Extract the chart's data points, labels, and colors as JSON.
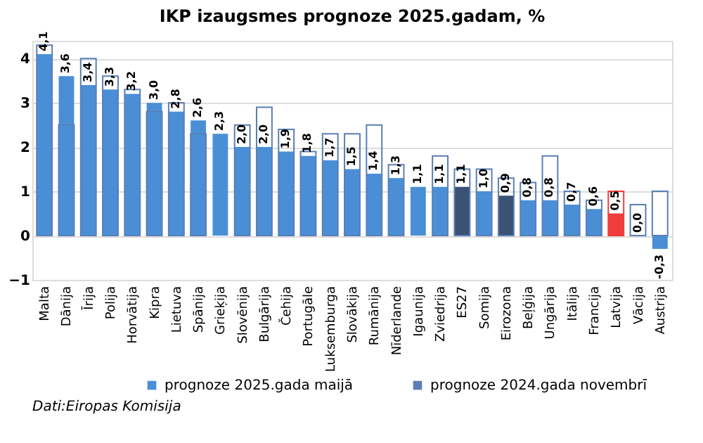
{
  "chart_data": {
    "type": "bar",
    "title": "IKP izaugsmes prognoze 2025.gadam, %",
    "categories": [
      "Malta",
      "Dānija",
      "Īrija",
      "Polija",
      "Horvātija",
      "Kipra",
      "Lietuva",
      "Spānija",
      "Grieķija",
      "Slovēnija",
      "Bulgārija",
      "Čehija",
      "Portugāle",
      "Luksemburga",
      "Slovākija",
      "Rumānija",
      "Nīderlande",
      "Igaunija",
      "Zviedrija",
      "ES27",
      "Somija",
      "Eirozona",
      "Beļģija",
      "Ungārija",
      "Itālija",
      "Francija",
      "Latvija",
      "Vācija",
      "Austrija"
    ],
    "series": [
      {
        "name": "prognoze 2025.gada maijā",
        "color": "#4a8fd6",
        "colors": [
          "#4a8fd6",
          "#4a8fd6",
          "#4a8fd6",
          "#4a8fd6",
          "#4a8fd6",
          "#4a8fd6",
          "#4a8fd6",
          "#4a8fd6",
          "#4a8fd6",
          "#4a8fd6",
          "#4a8fd6",
          "#4a8fd6",
          "#4a8fd6",
          "#4a8fd6",
          "#4a8fd6",
          "#4a8fd6",
          "#4a8fd6",
          "#4a8fd6",
          "#4a8fd6",
          "#3b5274",
          "#4a8fd6",
          "#3b5274",
          "#4a8fd6",
          "#4a8fd6",
          "#4a8fd6",
          "#4a8fd6",
          "#f03c3c",
          "#4a8fd6",
          "#4a8fd6"
        ],
        "values": [
          4.1,
          3.6,
          3.4,
          3.3,
          3.2,
          3.0,
          2.8,
          2.6,
          2.3,
          2.0,
          2.0,
          1.9,
          1.8,
          1.7,
          1.5,
          1.4,
          1.3,
          1.1,
          1.1,
          1.1,
          1.0,
          0.9,
          0.8,
          0.8,
          0.7,
          0.6,
          0.5,
          0.0,
          -0.3
        ],
        "value_labels": [
          "4,1",
          "3,6",
          "3,4",
          "3,3",
          "3,2",
          "3,0",
          "2,8",
          "2,6",
          "2,3",
          "2,0",
          "2,0",
          "1,9",
          "1,8",
          "1,7",
          "1,5",
          "1,4",
          "1,3",
          "1,1",
          "1,1",
          "1,1",
          "1,0",
          "0,9",
          "0,8",
          "0,8",
          "0,7",
          "0,6",
          "0,5",
          "0,0",
          "-0,3"
        ]
      },
      {
        "name": "prognoze 2024.gada novembrī",
        "color": "#5b7fb5",
        "colors": [
          "#5b7fb5",
          "#5b7fb5",
          "#5b7fb5",
          "#5b7fb5",
          "#5b7fb5",
          "#5b7fb5",
          "#5b7fb5",
          "#5b7fb5",
          "#5b7fb5",
          "#5b7fb5",
          "#5b7fb5",
          "#5b7fb5",
          "#5b7fb5",
          "#5b7fb5",
          "#5b7fb5",
          "#5b7fb5",
          "#5b7fb5",
          "#5b7fb5",
          "#5b7fb5",
          "#5b7fb5",
          "#5b7fb5",
          "#5b7fb5",
          "#5b7fb5",
          "#5b7fb5",
          "#5b7fb5",
          "#5b7fb5",
          "#f03c3c",
          "#5b7fb5",
          "#5b7fb5"
        ],
        "values": [
          4.3,
          2.5,
          4.0,
          3.6,
          3.3,
          2.8,
          3.0,
          2.3,
          null,
          2.5,
          2.9,
          2.4,
          1.9,
          2.3,
          2.3,
          2.5,
          1.6,
          null,
          1.8,
          1.5,
          1.5,
          1.3,
          1.2,
          1.8,
          1.0,
          0.8,
          1.0,
          0.7,
          1.0
        ]
      }
    ],
    "ylim": [
      -1,
      4.4
    ],
    "yticks": [
      -1,
      0,
      1,
      2,
      3,
      4
    ],
    "grid": "y",
    "legend": "bottom",
    "annotations": [
      "Dati:Eiropas Komisija"
    ]
  }
}
